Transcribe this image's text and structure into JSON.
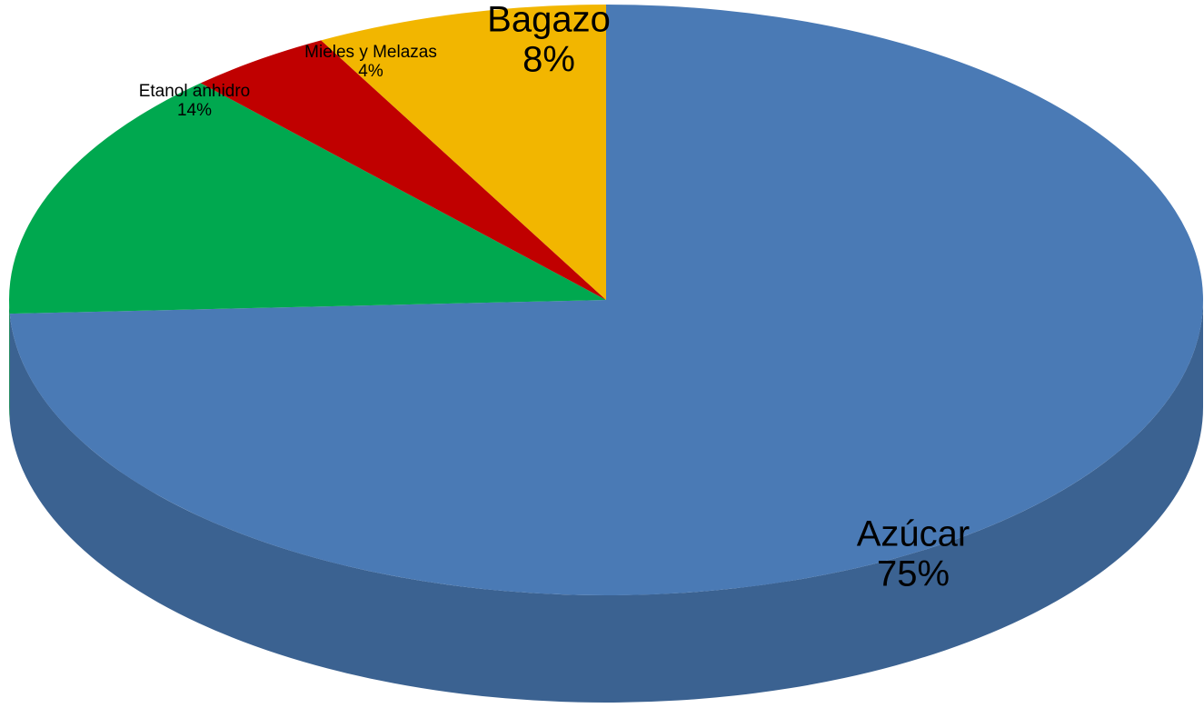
{
  "chart_data": {
    "type": "pie",
    "categories": [
      "Azúcar",
      "Etanol anhidro",
      "Mieles y Melazas",
      "Bagazo"
    ],
    "values": [
      75,
      14,
      4,
      8
    ],
    "value_labels": [
      "75%",
      "14%",
      "4%",
      "8%"
    ],
    "colors": [
      "#4a7ab5",
      "#00a84f",
      "#c00000",
      "#f2b600"
    ]
  }
}
